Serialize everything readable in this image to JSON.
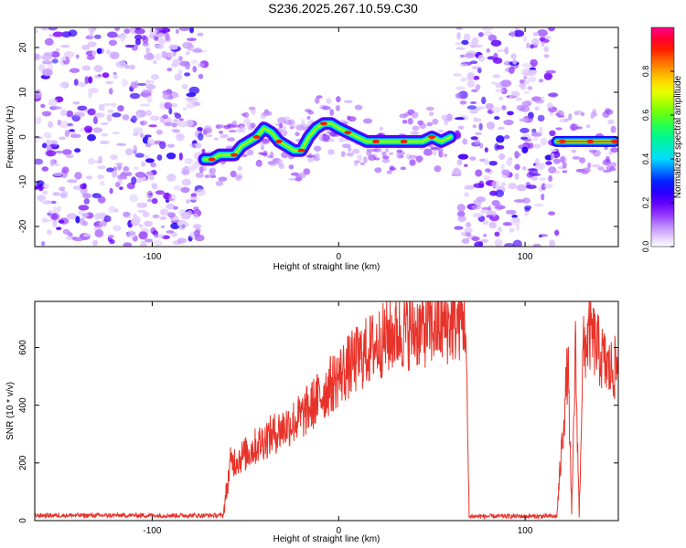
{
  "title": "S236.2025.267.10.59.C30",
  "colors": {
    "snr_line": "#e8332a",
    "axis": "#000000",
    "background": "#ffffff"
  },
  "chart_data": [
    {
      "type": "heatmap",
      "title": "S236.2025.267.10.59.C30",
      "xlabel": "Height of straight line (km)",
      "ylabel": "Frequency (Hz)",
      "xlim": [
        -163,
        150
      ],
      "ylim": [
        -24.5,
        24.5
      ],
      "xticks": [
        -100,
        0,
        100
      ],
      "yticks": [
        -20,
        -10,
        0,
        10,
        20
      ],
      "grid": false,
      "colorbar": {
        "label": "Normalized spectral amplitude",
        "range": [
          0,
          1
        ],
        "ticks": [
          0.0,
          0.2,
          0.4,
          0.6,
          0.8
        ],
        "colormap": "rainbow (white/violet low → red/magenta high)"
      },
      "noise_regions_km": [
        [
          -163,
          -72
        ],
        [
          63,
          117
        ]
      ],
      "signal_track": {
        "x": [
          -72,
          -68,
          -64,
          -60,
          -56,
          -52,
          -48,
          -44,
          -40,
          -36,
          -32,
          -28,
          -24,
          -20,
          -16,
          -12,
          -8,
          -4,
          0,
          5,
          10,
          15,
          20,
          25,
          30,
          35,
          40,
          45,
          50,
          55,
          60
        ],
        "y": [
          -5,
          -5,
          -4,
          -4,
          -4,
          -2,
          -1,
          0,
          2,
          1,
          -1,
          -2,
          -3,
          -3,
          0,
          2,
          3,
          3,
          2,
          1,
          0,
          -1,
          -1,
          -1,
          -1,
          -1,
          -1,
          -1,
          0,
          -1,
          0
        ]
      },
      "signal_track_2": {
        "x": [
          117,
          120,
          125,
          130,
          135,
          140,
          145,
          148
        ],
        "y": [
          -1,
          -1,
          -1,
          -1,
          -1,
          -1,
          -1,
          -1
        ]
      }
    },
    {
      "type": "line",
      "xlabel": "Height of straight line (km)",
      "ylabel": "SNR (10 * v/v)",
      "xlim": [
        -163,
        150
      ],
      "ylim": [
        0,
        760
      ],
      "xticks": [
        -100,
        0,
        100
      ],
      "yticks": [
        0,
        200,
        400,
        600
      ],
      "grid": false,
      "series": [
        {
          "x": [
            -163,
            -62,
            -58,
            -50,
            -40,
            -30,
            -20,
            -10,
            0,
            10,
            20,
            30,
            40,
            50,
            60,
            64,
            68,
            70,
            72,
            117,
            123,
            125,
            127,
            129,
            131,
            133,
            135,
            140,
            145,
            150
          ],
          "y": [
            18,
            18,
            200,
            230,
            280,
            320,
            360,
            430,
            500,
            560,
            610,
            650,
            660,
            670,
            680,
            690,
            700,
            15,
            15,
            15,
            550,
            15,
            600,
            15,
            580,
            620,
            650,
            580,
            520,
            530
          ],
          "noise": {
            "low": 12,
            "rise_start": 60,
            "rise_end": 600
          }
        }
      ]
    }
  ]
}
